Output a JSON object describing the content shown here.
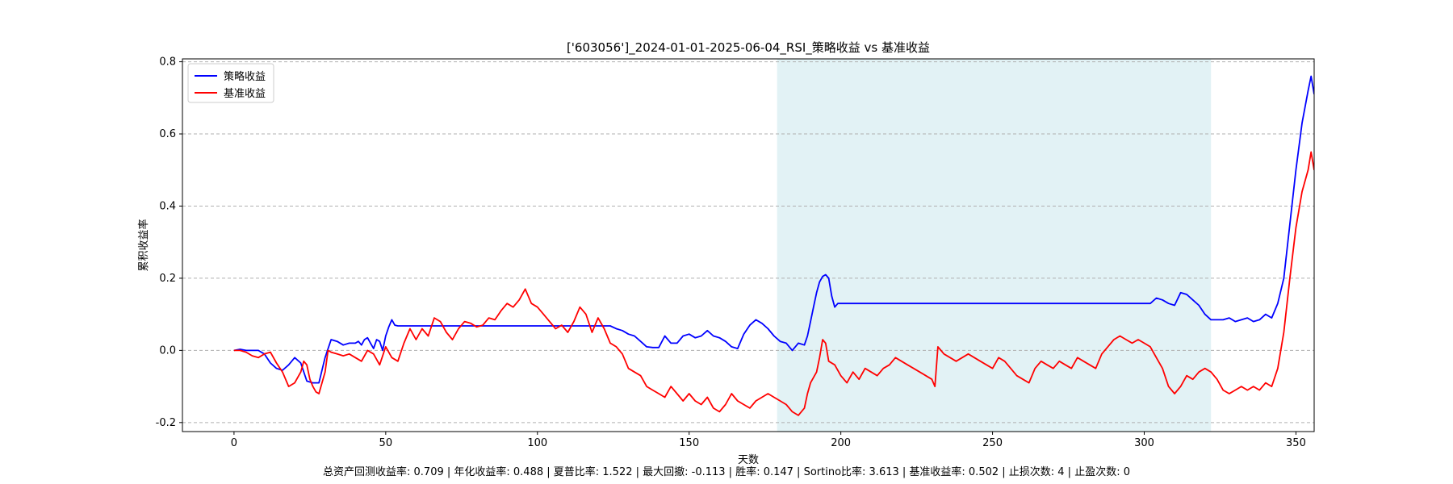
{
  "chart_data": {
    "type": "line",
    "title": "['603056']_2024-01-01-2025-06-04_RSI_策略收益 vs 基准收益",
    "xlabel": "天数",
    "ylabel": "累积收益率",
    "xlim": [
      -17,
      356
    ],
    "ylim": [
      -0.225,
      0.808
    ],
    "x_ticks": [
      0,
      50,
      100,
      150,
      200,
      250,
      300,
      350
    ],
    "y_ticks": [
      -0.2,
      0.0,
      0.2,
      0.4,
      0.6,
      0.8
    ],
    "x_tick_labels": [
      "0",
      "50",
      "100",
      "150",
      "200",
      "250",
      "300",
      "350"
    ],
    "y_tick_labels": [
      "-0.2",
      "0.0",
      "0.2",
      "0.4",
      "0.6",
      "0.8"
    ],
    "grid": "horizontal-dashed",
    "legend": "top-left",
    "shaded_region": {
      "x_start": 179,
      "x_end": 322,
      "color": "#d8eef2"
    },
    "series": [
      {
        "name": "策略收益",
        "color": "#0000ff",
        "points": [
          [
            0,
            0
          ],
          [
            2,
            0.003
          ],
          [
            4,
            0
          ],
          [
            6,
            0
          ],
          [
            8,
            0
          ],
          [
            10,
            -0.01
          ],
          [
            12,
            -0.035
          ],
          [
            14,
            -0.05
          ],
          [
            16,
            -0.055
          ],
          [
            18,
            -0.04
          ],
          [
            20,
            -0.02
          ],
          [
            22,
            -0.035
          ],
          [
            24,
            -0.085
          ],
          [
            26,
            -0.09
          ],
          [
            28,
            -0.09
          ],
          [
            30,
            -0.02
          ],
          [
            32,
            0.03
          ],
          [
            34,
            0.025
          ],
          [
            36,
            0.015
          ],
          [
            38,
            0.02
          ],
          [
            40,
            0.02
          ],
          [
            41,
            0.025
          ],
          [
            42,
            0.015
          ],
          [
            43,
            0.03
          ],
          [
            44,
            0.035
          ],
          [
            45,
            0.02
          ],
          [
            46,
            0.005
          ],
          [
            47,
            0.03
          ],
          [
            48,
            0.025
          ],
          [
            49,
            0
          ],
          [
            50,
            0.04
          ],
          [
            51,
            0.065
          ],
          [
            52,
            0.085
          ],
          [
            53,
            0.07
          ],
          [
            54,
            0.068
          ],
          [
            60,
            0.068
          ],
          [
            80,
            0.068
          ],
          [
            100,
            0.068
          ],
          [
            110,
            0.068
          ],
          [
            124,
            0.068
          ],
          [
            126,
            0.06
          ],
          [
            128,
            0.055
          ],
          [
            130,
            0.045
          ],
          [
            132,
            0.04
          ],
          [
            134,
            0.025
          ],
          [
            136,
            0.01
          ],
          [
            138,
            0.008
          ],
          [
            140,
            0.008
          ],
          [
            142,
            0.04
          ],
          [
            144,
            0.02
          ],
          [
            146,
            0.02
          ],
          [
            148,
            0.04
          ],
          [
            150,
            0.045
          ],
          [
            152,
            0.035
          ],
          [
            154,
            0.04
          ],
          [
            156,
            0.055
          ],
          [
            158,
            0.04
          ],
          [
            160,
            0.035
          ],
          [
            162,
            0.025
          ],
          [
            164,
            0.01
          ],
          [
            166,
            0.005
          ],
          [
            168,
            0.045
          ],
          [
            170,
            0.07
          ],
          [
            172,
            0.085
          ],
          [
            174,
            0.075
          ],
          [
            176,
            0.06
          ],
          [
            178,
            0.04
          ],
          [
            180,
            0.025
          ],
          [
            182,
            0.02
          ],
          [
            184,
            0
          ],
          [
            186,
            0.02
          ],
          [
            188,
            0.015
          ],
          [
            189,
            0.04
          ],
          [
            190,
            0.08
          ],
          [
            191,
            0.12
          ],
          [
            192,
            0.16
          ],
          [
            193,
            0.19
          ],
          [
            194,
            0.205
          ],
          [
            195,
            0.21
          ],
          [
            196,
            0.2
          ],
          [
            197,
            0.15
          ],
          [
            198,
            0.12
          ],
          [
            199,
            0.13
          ],
          [
            200,
            0.13
          ],
          [
            220,
            0.13
          ],
          [
            260,
            0.13
          ],
          [
            300,
            0.13
          ],
          [
            302,
            0.13
          ],
          [
            304,
            0.145
          ],
          [
            306,
            0.14
          ],
          [
            308,
            0.13
          ],
          [
            310,
            0.125
          ],
          [
            312,
            0.16
          ],
          [
            314,
            0.155
          ],
          [
            316,
            0.14
          ],
          [
            318,
            0.125
          ],
          [
            320,
            0.1
          ],
          [
            322,
            0.085
          ],
          [
            326,
            0.085
          ],
          [
            328,
            0.09
          ],
          [
            330,
            0.08
          ],
          [
            332,
            0.085
          ],
          [
            334,
            0.09
          ],
          [
            336,
            0.08
          ],
          [
            338,
            0.085
          ],
          [
            340,
            0.1
          ],
          [
            342,
            0.09
          ],
          [
            344,
            0.13
          ],
          [
            346,
            0.2
          ],
          [
            348,
            0.35
          ],
          [
            350,
            0.5
          ],
          [
            352,
            0.63
          ],
          [
            354,
            0.72
          ],
          [
            355,
            0.76
          ],
          [
            356,
            0.71
          ]
        ]
      },
      {
        "name": "基准收益",
        "color": "#ff0000",
        "points": [
          [
            0,
            0
          ],
          [
            2,
            0
          ],
          [
            4,
            -0.005
          ],
          [
            6,
            -0.015
          ],
          [
            8,
            -0.02
          ],
          [
            10,
            -0.01
          ],
          [
            12,
            -0.005
          ],
          [
            14,
            -0.035
          ],
          [
            16,
            -0.06
          ],
          [
            18,
            -0.1
          ],
          [
            20,
            -0.09
          ],
          [
            22,
            -0.06
          ],
          [
            23,
            -0.03
          ],
          [
            24,
            -0.04
          ],
          [
            25,
            -0.08
          ],
          [
            26,
            -0.1
          ],
          [
            27,
            -0.115
          ],
          [
            28,
            -0.12
          ],
          [
            29,
            -0.09
          ],
          [
            30,
            -0.06
          ],
          [
            31,
            0
          ],
          [
            32,
            -0.005
          ],
          [
            34,
            -0.01
          ],
          [
            36,
            -0.015
          ],
          [
            38,
            -0.01
          ],
          [
            40,
            -0.02
          ],
          [
            42,
            -0.03
          ],
          [
            44,
            0
          ],
          [
            46,
            -0.01
          ],
          [
            48,
            -0.04
          ],
          [
            50,
            0.01
          ],
          [
            52,
            -0.02
          ],
          [
            54,
            -0.03
          ],
          [
            56,
            0.02
          ],
          [
            58,
            0.06
          ],
          [
            60,
            0.03
          ],
          [
            62,
            0.06
          ],
          [
            64,
            0.04
          ],
          [
            66,
            0.09
          ],
          [
            68,
            0.08
          ],
          [
            70,
            0.05
          ],
          [
            72,
            0.03
          ],
          [
            74,
            0.06
          ],
          [
            76,
            0.08
          ],
          [
            78,
            0.075
          ],
          [
            80,
            0.065
          ],
          [
            82,
            0.07
          ],
          [
            84,
            0.09
          ],
          [
            86,
            0.085
          ],
          [
            88,
            0.11
          ],
          [
            90,
            0.13
          ],
          [
            92,
            0.12
          ],
          [
            94,
            0.14
          ],
          [
            96,
            0.17
          ],
          [
            98,
            0.13
          ],
          [
            100,
            0.12
          ],
          [
            102,
            0.1
          ],
          [
            104,
            0.08
          ],
          [
            106,
            0.06
          ],
          [
            108,
            0.07
          ],
          [
            110,
            0.05
          ],
          [
            112,
            0.08
          ],
          [
            114,
            0.12
          ],
          [
            116,
            0.1
          ],
          [
            118,
            0.05
          ],
          [
            120,
            0.09
          ],
          [
            122,
            0.06
          ],
          [
            124,
            0.02
          ],
          [
            126,
            0.01
          ],
          [
            128,
            -0.01
          ],
          [
            130,
            -0.05
          ],
          [
            132,
            -0.06
          ],
          [
            134,
            -0.07
          ],
          [
            136,
            -0.1
          ],
          [
            138,
            -0.11
          ],
          [
            140,
            -0.12
          ],
          [
            142,
            -0.13
          ],
          [
            144,
            -0.1
          ],
          [
            146,
            -0.12
          ],
          [
            148,
            -0.14
          ],
          [
            150,
            -0.12
          ],
          [
            152,
            -0.14
          ],
          [
            154,
            -0.15
          ],
          [
            156,
            -0.13
          ],
          [
            158,
            -0.16
          ],
          [
            160,
            -0.17
          ],
          [
            162,
            -0.15
          ],
          [
            164,
            -0.12
          ],
          [
            166,
            -0.14
          ],
          [
            168,
            -0.15
          ],
          [
            170,
            -0.16
          ],
          [
            172,
            -0.14
          ],
          [
            174,
            -0.13
          ],
          [
            176,
            -0.12
          ],
          [
            178,
            -0.13
          ],
          [
            180,
            -0.14
          ],
          [
            182,
            -0.15
          ],
          [
            184,
            -0.17
          ],
          [
            186,
            -0.18
          ],
          [
            188,
            -0.16
          ],
          [
            189,
            -0.12
          ],
          [
            190,
            -0.09
          ],
          [
            192,
            -0.06
          ],
          [
            193,
            -0.02
          ],
          [
            194,
            0.03
          ],
          [
            195,
            0.02
          ],
          [
            196,
            -0.03
          ],
          [
            198,
            -0.04
          ],
          [
            200,
            -0.07
          ],
          [
            202,
            -0.09
          ],
          [
            204,
            -0.06
          ],
          [
            206,
            -0.08
          ],
          [
            208,
            -0.05
          ],
          [
            210,
            -0.06
          ],
          [
            212,
            -0.07
          ],
          [
            214,
            -0.05
          ],
          [
            216,
            -0.04
          ],
          [
            218,
            -0.02
          ],
          [
            220,
            -0.03
          ],
          [
            222,
            -0.04
          ],
          [
            224,
            -0.05
          ],
          [
            226,
            -0.06
          ],
          [
            228,
            -0.07
          ],
          [
            230,
            -0.08
          ],
          [
            231,
            -0.1
          ],
          [
            232,
            0.01
          ],
          [
            234,
            -0.01
          ],
          [
            236,
            -0.02
          ],
          [
            238,
            -0.03
          ],
          [
            240,
            -0.02
          ],
          [
            242,
            -0.01
          ],
          [
            244,
            -0.02
          ],
          [
            246,
            -0.03
          ],
          [
            248,
            -0.04
          ],
          [
            250,
            -0.05
          ],
          [
            252,
            -0.02
          ],
          [
            254,
            -0.03
          ],
          [
            256,
            -0.05
          ],
          [
            258,
            -0.07
          ],
          [
            260,
            -0.08
          ],
          [
            262,
            -0.09
          ],
          [
            264,
            -0.05
          ],
          [
            266,
            -0.03
          ],
          [
            268,
            -0.04
          ],
          [
            270,
            -0.05
          ],
          [
            272,
            -0.03
          ],
          [
            274,
            -0.04
          ],
          [
            276,
            -0.05
          ],
          [
            278,
            -0.02
          ],
          [
            280,
            -0.03
          ],
          [
            282,
            -0.04
          ],
          [
            284,
            -0.05
          ],
          [
            286,
            -0.01
          ],
          [
            288,
            0.01
          ],
          [
            290,
            0.03
          ],
          [
            292,
            0.04
          ],
          [
            294,
            0.03
          ],
          [
            296,
            0.02
          ],
          [
            298,
            0.03
          ],
          [
            300,
            0.02
          ],
          [
            302,
            0.01
          ],
          [
            304,
            -0.02
          ],
          [
            306,
            -0.05
          ],
          [
            308,
            -0.1
          ],
          [
            310,
            -0.12
          ],
          [
            312,
            -0.1
          ],
          [
            314,
            -0.07
          ],
          [
            316,
            -0.08
          ],
          [
            318,
            -0.06
          ],
          [
            320,
            -0.05
          ],
          [
            322,
            -0.06
          ],
          [
            324,
            -0.08
          ],
          [
            326,
            -0.11
          ],
          [
            328,
            -0.12
          ],
          [
            330,
            -0.11
          ],
          [
            332,
            -0.1
          ],
          [
            334,
            -0.11
          ],
          [
            336,
            -0.1
          ],
          [
            338,
            -0.11
          ],
          [
            340,
            -0.09
          ],
          [
            342,
            -0.1
          ],
          [
            344,
            -0.05
          ],
          [
            346,
            0.05
          ],
          [
            348,
            0.2
          ],
          [
            350,
            0.34
          ],
          [
            352,
            0.44
          ],
          [
            354,
            0.5
          ],
          [
            355,
            0.55
          ],
          [
            356,
            0.5
          ]
        ]
      }
    ]
  },
  "footer": {
    "stats_text": "总资产回测收益率: 0.709 | 年化收益率: 0.488 | 夏普比率: 1.522 | 最大回撤: -0.113 | 胜率: 0.147 | Sortino比率: 3.613 | 基准收益率: 0.502 | 止损次数: 4 | 止盈次数: 0"
  }
}
